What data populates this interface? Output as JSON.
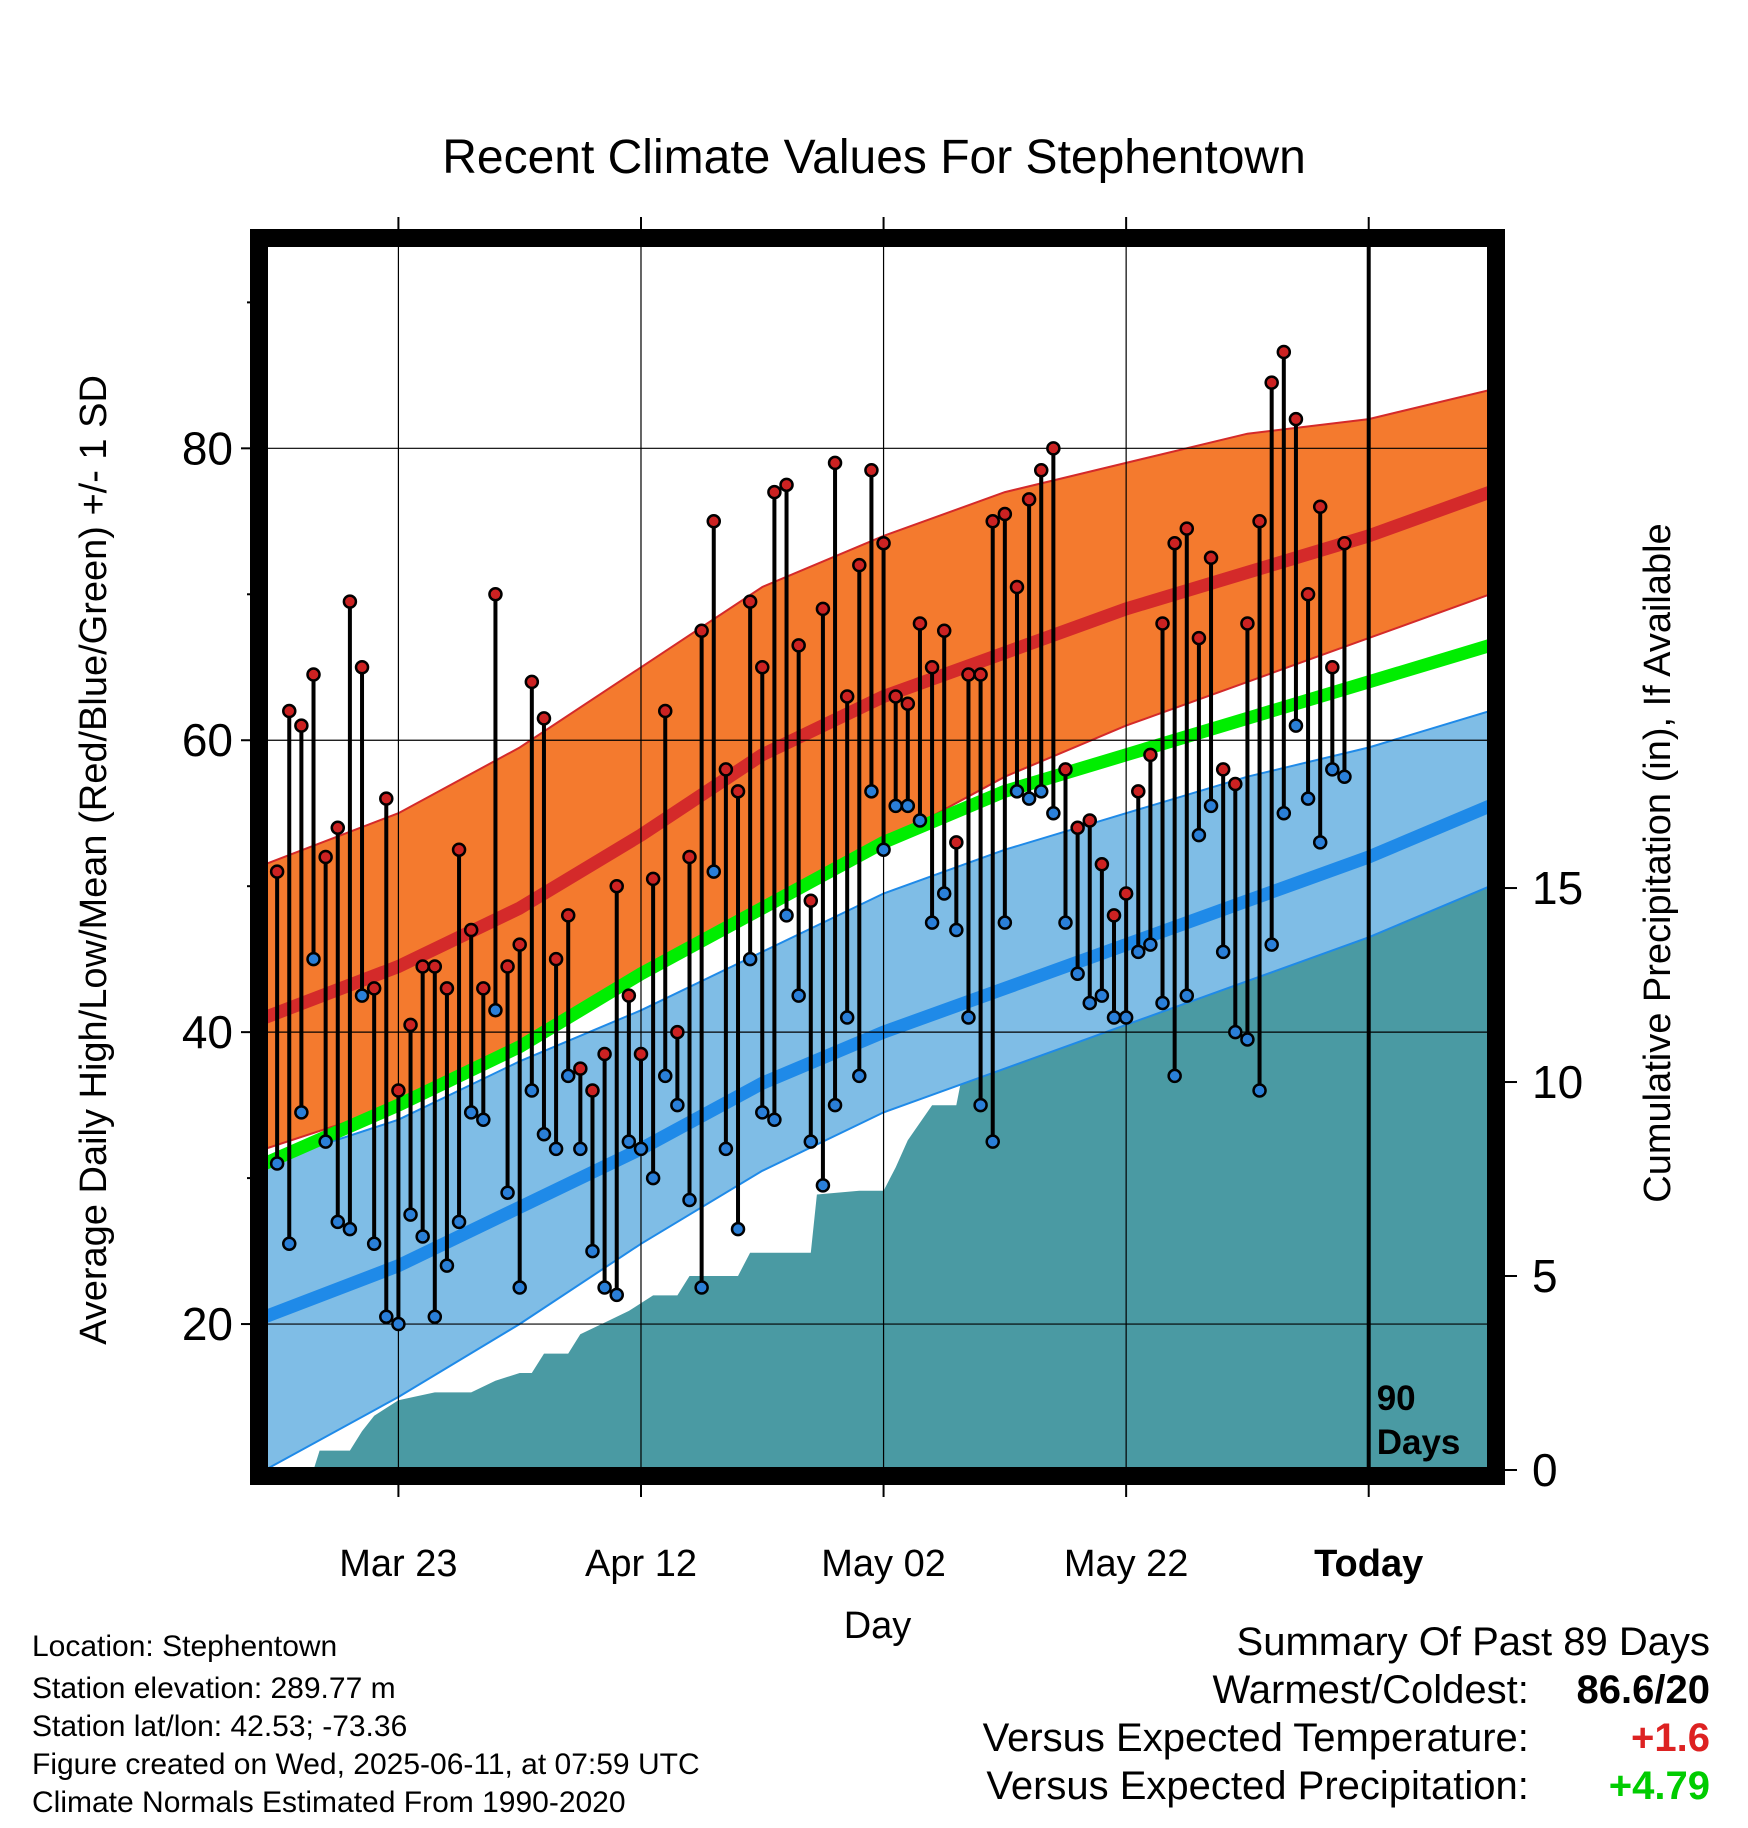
{
  "chart_data": {
    "type": "line",
    "title": "Recent Climate Values For Stephentown",
    "xlabel": "Day",
    "ylabel": "Average Daily High/Low/Mean (Red/Blue/Green) +/- 1 SD",
    "y2label": "Cumulative Precipitation (in), If Available",
    "x_tick_labels": [
      "Mar 23",
      "Apr 12",
      "May 02",
      "May 22",
      "Today"
    ],
    "x_tick_days": [
      10,
      30,
      50,
      70,
      90
    ],
    "x_range_days": [
      -1,
      100
    ],
    "ylim": [
      10,
      94
    ],
    "y_ticks": [
      20,
      40,
      60,
      80
    ],
    "y2lim": [
      0,
      31.6
    ],
    "y2_ticks": [
      0,
      5,
      10,
      15
    ],
    "today_marker_label": [
      "90",
      "Days"
    ],
    "grid": true,
    "colors": {
      "high_band": "#f47a2e",
      "high_line": "#d42a2a",
      "low_band": "#7fbde6",
      "low_line": "#1f8ae8",
      "mean_line": "#00ee00",
      "precip": "#4a9aa3",
      "high_marker": "#cc2222",
      "low_marker": "#2a7fd8"
    },
    "normals": {
      "days": [
        -1,
        10,
        20,
        30,
        40,
        50,
        60,
        70,
        80,
        90,
        100
      ],
      "high_mean": [
        41,
        44.5,
        48.5,
        53.5,
        59,
        63,
        66,
        69,
        71.5,
        74,
        77
      ],
      "high_upper": [
        51.5,
        55,
        59.5,
        65,
        70.5,
        74,
        77,
        79,
        81,
        82,
        84
      ],
      "high_lower": [
        32,
        35,
        39,
        44,
        48.5,
        53,
        57.5,
        61,
        64,
        67,
        70
      ],
      "mean": [
        31,
        35,
        39,
        44,
        48.5,
        53,
        56.5,
        59,
        61.5,
        64,
        66.5
      ],
      "low_mean": [
        20.5,
        24,
        28,
        32,
        36.5,
        40,
        43,
        46,
        49,
        52,
        55.5
      ],
      "low_upper": [
        31,
        34,
        38,
        41.5,
        45.5,
        49.5,
        52.5,
        55,
        57.5,
        59.5,
        62
      ],
      "low_lower": [
        10,
        15,
        20,
        25.5,
        30.5,
        34.5,
        37.5,
        40.5,
        43.5,
        46.5,
        50
      ]
    },
    "daily_high": [
      51,
      62,
      61,
      64.5,
      52,
      54,
      69.5,
      65,
      43,
      56,
      36,
      40.5,
      44.5,
      44.5,
      43,
      52.5,
      47,
      43,
      70,
      44.5,
      46,
      64,
      61.5,
      45,
      48,
      37.5,
      36,
      38.5,
      50,
      42.5,
      38.5,
      50.5,
      62,
      40,
      52,
      67.5,
      75,
      58,
      56.5,
      69.5,
      65,
      77,
      77.5,
      66.5,
      49,
      69,
      79,
      63,
      72,
      78.5,
      73.5,
      63,
      62.5,
      68,
      65,
      67.5,
      53,
      64.5,
      64.5,
      75,
      75.5,
      70.5,
      76.5,
      78.5,
      80,
      58,
      54,
      54.5,
      51.5,
      48,
      49.5,
      56.5,
      59,
      68,
      73.5,
      74.5,
      67,
      72.5,
      58,
      57,
      68,
      75,
      84.5,
      86.6,
      82,
      70,
      76,
      65,
      73.5
    ],
    "daily_low": [
      31,
      25.5,
      34.5,
      45,
      32.5,
      27,
      26.5,
      42.5,
      25.5,
      20.5,
      20,
      27.5,
      26,
      20.5,
      24,
      27,
      34.5,
      34,
      41.5,
      29,
      22.5,
      36,
      33,
      32,
      37,
      32,
      25,
      22.5,
      22,
      32.5,
      32,
      30,
      37,
      35,
      28.5,
      22.5,
      51,
      32,
      26.5,
      45,
      34.5,
      34,
      48,
      42.5,
      32.5,
      29.5,
      35,
      41,
      37,
      56.5,
      52.5,
      55.5,
      55.5,
      54.5,
      47.5,
      49.5,
      47,
      41,
      35,
      32.5,
      47.5,
      56.5,
      56,
      56.5,
      55,
      47.5,
      44,
      42,
      42.5,
      41,
      41,
      45.5,
      46,
      42,
      37,
      42.5,
      53.5,
      55.5,
      45.5,
      40,
      39.5,
      36,
      46,
      55,
      61,
      56,
      53,
      58,
      57.5
    ],
    "cumulative_precip": [
      [
        0,
        0
      ],
      [
        3,
        0
      ],
      [
        3.5,
        0.5
      ],
      [
        6,
        0.5
      ],
      [
        7,
        1
      ],
      [
        8,
        1.4
      ],
      [
        10,
        1.8
      ],
      [
        13,
        2
      ],
      [
        16,
        2
      ],
      [
        18,
        2.3
      ],
      [
        20,
        2.5
      ],
      [
        21,
        2.5
      ],
      [
        22,
        3
      ],
      [
        24,
        3
      ],
      [
        25,
        3.5
      ],
      [
        27,
        3.8
      ],
      [
        29,
        4.1
      ],
      [
        31,
        4.5
      ],
      [
        33,
        4.5
      ],
      [
        34,
        5
      ],
      [
        38,
        5
      ],
      [
        39,
        5.6
      ],
      [
        44,
        5.6
      ],
      [
        44.5,
        7.1
      ],
      [
        48,
        7.2
      ],
      [
        50,
        7.2
      ],
      [
        51,
        7.8
      ],
      [
        52,
        8.5
      ],
      [
        54,
        9.4
      ],
      [
        56,
        9.4
      ],
      [
        57,
        11
      ],
      [
        60,
        11
      ],
      [
        62,
        11.2
      ],
      [
        64,
        11.3
      ],
      [
        67,
        11.5
      ],
      [
        68,
        11.6
      ],
      [
        70,
        12.3
      ],
      [
        71,
        12.6
      ],
      [
        74,
        12.6
      ],
      [
        76,
        12.6
      ],
      [
        77,
        13.6
      ],
      [
        78,
        14.8
      ],
      [
        81,
        14.8
      ],
      [
        82,
        15.4
      ],
      [
        83,
        15.6
      ],
      [
        84,
        15.9
      ],
      [
        86,
        15.9
      ],
      [
        87,
        16
      ],
      [
        90,
        16
      ],
      [
        100,
        16
      ]
    ]
  },
  "info": {
    "location": "Location: Stephentown",
    "elevation": "Station elevation: 289.77 m",
    "latlon": "Station lat/lon: 42.53; -73.36",
    "created": "Figure created on Wed, 2025-06-11, at 07:59 UTC",
    "normals": "Climate Normals Estimated From 1990-2020"
  },
  "summary": {
    "title": "Summary Of Past 89 Days",
    "warm_cold_label": "Warmest/Coldest:",
    "warmest": "86.6",
    "sep": "/",
    "coldest": "20",
    "temp_label": "Versus Expected Temperature:",
    "temp_value": "+1.6",
    "temp_color": "#dd2222",
    "precip_label": "Versus Expected Precipitation:",
    "precip_value": "+4.79",
    "precip_color": "#00cc00"
  }
}
